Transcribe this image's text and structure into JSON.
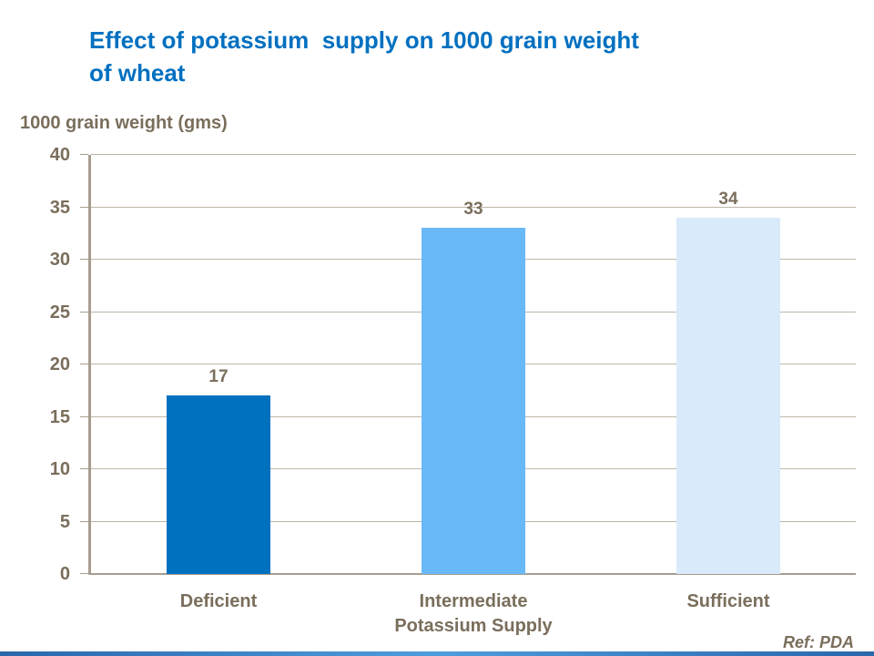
{
  "page": {
    "title_line1": "Effect of potassium  supply on 1000 grain weight",
    "title_line2": "of wheat",
    "ref_label": "Ref: PDA",
    "colors": {
      "title_blue": "#0070C0",
      "text_brown": "#7A6E5C",
      "gridline": "#BFB5A8",
      "axis": "#A79D8F",
      "footer_bar_blue": "#2E75B6"
    }
  },
  "chart_data": {
    "type": "bar",
    "title": "Effect of potassium  supply on 1000 grain weight of wheat",
    "categories": [
      "Deficient",
      "Intermediate",
      "Sufficient"
    ],
    "values": [
      17,
      33,
      34
    ],
    "xlabel": "Potassium Supply",
    "ylabel": "1000 grain weight (gms)",
    "ylim": [
      0,
      40
    ],
    "ytick_step": 5,
    "grid": true,
    "legend": false,
    "bar_colors": [
      "#0071BE",
      "#69B9F8",
      "#D9EAFB"
    ]
  }
}
